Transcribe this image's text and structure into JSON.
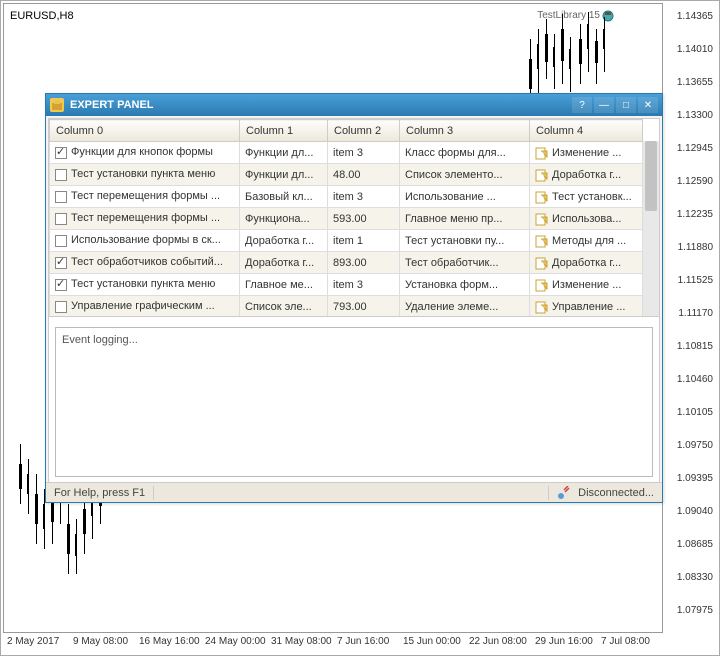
{
  "chart": {
    "symbol": "EURUSD,H8",
    "testlib": "TestLibrary 15",
    "y_ticks": [
      "1.14365",
      "1.14010",
      "1.13655",
      "1.13300",
      "1.12945",
      "1.12590",
      "1.12235",
      "1.11880",
      "1.11525",
      "1.11170",
      "1.10815",
      "1.10460",
      "1.10105",
      "1.09750",
      "1.09395",
      "1.09040",
      "1.08685",
      "1.08330",
      "1.07975"
    ],
    "x_ticks": [
      "2 May 2017",
      "9 May 08:00",
      "16 May 16:00",
      "24 May 00:00",
      "31 May 08:00",
      "7 Jun 16:00",
      "15 Jun 00:00",
      "22 Jun 08:00",
      "29 Jun 16:00",
      "7 Jul 08:00"
    ]
  },
  "panel": {
    "title": "EXPERT PANEL",
    "help_text": "For Help, press F1",
    "disconnected": "Disconnected...",
    "log": "Event logging...",
    "columns": [
      "Column 0",
      "Column 1",
      "Column 2",
      "Column 3",
      "Column 4"
    ],
    "rows": [
      {
        "chk": true,
        "c0": "Функции для кнопок формы",
        "c1": "Функции дл...",
        "c2": "item 3",
        "c3": "Класс формы для...",
        "c4": "Изменение ..."
      },
      {
        "chk": false,
        "c0": "Тест установки пункта меню",
        "c1": "Функции дл...",
        "c2": "48.00",
        "c3": "Список элементо...",
        "c4": "Доработка г..."
      },
      {
        "chk": false,
        "c0": "Тест перемещения формы ...",
        "c1": "Базовый кл...",
        "c2": "item 3",
        "c3": "Использование ...",
        "c4": "Тест установк..."
      },
      {
        "chk": false,
        "c0": "Тест перемещения формы ...",
        "c1": "Функциона...",
        "c2": "593.00",
        "c3": "Главное меню пр...",
        "c4": "Использова..."
      },
      {
        "chk": false,
        "c0": "Использование формы в ск...",
        "c1": "Доработка г...",
        "c2": "item 1",
        "c3": "Тест установки пу...",
        "c4": "Методы для ..."
      },
      {
        "chk": true,
        "c0": "Тест обработчиков событий...",
        "c1": "Доработка г...",
        "c2": "893.00",
        "c3": "Тест обработчик...",
        "c4": "Доработка г..."
      },
      {
        "chk": true,
        "c0": "Тест установки пункта меню",
        "c1": "Главное ме...",
        "c2": "item 3",
        "c3": "Установка форм...",
        "c4": "Изменение ..."
      },
      {
        "chk": false,
        "c0": "Управление графическим ...",
        "c1": "Список эле...",
        "c2": "793.00",
        "c3": "Удаление элеме...",
        "c4": "Управление ..."
      }
    ]
  }
}
